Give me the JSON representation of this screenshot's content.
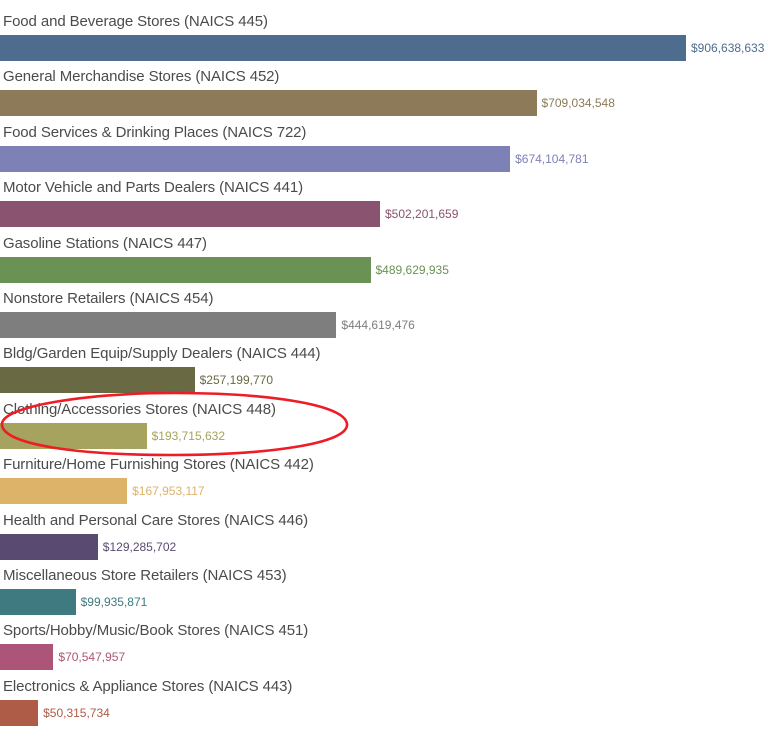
{
  "chart_data": {
    "type": "bar",
    "orientation": "horizontal",
    "title": "",
    "xlabel": "",
    "ylabel": "",
    "grid": false,
    "xlim": [
      0,
      906638633
    ],
    "categories": [
      "Food and Beverage Stores (NAICS 445)",
      "General Merchandise Stores (NAICS 452)",
      "Food Services & Drinking Places (NAICS 722)",
      "Motor Vehicle and Parts Dealers (NAICS 441)",
      "Gasoline Stations (NAICS 447)",
      "Nonstore Retailers (NAICS 454)",
      "Bldg/Garden Equip/Supply Dealers (NAICS 444)",
      "Clothing/Accessories Stores (NAICS 448)",
      "Furniture/Home Furnishing Stores (NAICS 442)",
      "Health and Personal Care Stores (NAICS 446)",
      "Miscellaneous Store Retailers (NAICS 453)",
      "Sports/Hobby/Music/Book Stores (NAICS 451)",
      "Electronics & Appliance Stores (NAICS 443)"
    ],
    "values": [
      906638633,
      709034548,
      674104781,
      502201659,
      489629935,
      444619476,
      257199770,
      193715632,
      167953117,
      129285702,
      99935871,
      70547957,
      50315734
    ],
    "value_labels": [
      "$906,638,633",
      "$709,034,548",
      "$674,104,781",
      "$502,201,659",
      "$489,629,935",
      "$444,619,476",
      "$257,199,770",
      "$193,715,632",
      "$167,953,117",
      "$129,285,702",
      "$99,935,871",
      "$70,547,957",
      "$50,315,734"
    ],
    "bar_colors": [
      "#4e6d8e",
      "#8c7a58",
      "#7e81b6",
      "#8a5370",
      "#6a9254",
      "#7e7e7e",
      "#696944",
      "#a5a35d",
      "#ddb269",
      "#594a72",
      "#3e7a80",
      "#ac5578",
      "#ae5c48"
    ],
    "category_label_color": "#4b4b4b",
    "legend": null,
    "annotation": {
      "type": "hand-drawn-ellipse",
      "target_category": "Clothing/Accessories Stores (NAICS 448)",
      "color": "#ee1c25"
    }
  }
}
